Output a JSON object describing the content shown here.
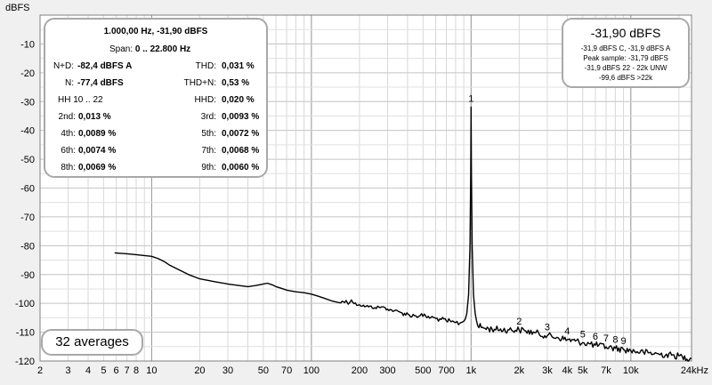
{
  "chart_data": {
    "type": "line",
    "ylabel": "dBFS",
    "x_unit_label": "24kHz",
    "x_scale": "log",
    "xlim": [
      2,
      24000
    ],
    "ylim": [
      -120,
      0
    ],
    "grid": true,
    "y_ticks": [
      -10,
      -20,
      -30,
      -40,
      -50,
      -60,
      -70,
      -80,
      -90,
      -100,
      -110,
      -120
    ],
    "x_ticks": [
      {
        "v": 2,
        "label": "2"
      },
      {
        "v": 3,
        "label": "3"
      },
      {
        "v": 4,
        "label": "4"
      },
      {
        "v": 5,
        "label": "5"
      },
      {
        "v": 6,
        "label": "6"
      },
      {
        "v": 7,
        "label": "7"
      },
      {
        "v": 8,
        "label": "8"
      },
      {
        "v": 10,
        "label": "10"
      },
      {
        "v": 20,
        "label": "20"
      },
      {
        "v": 30,
        "label": "30"
      },
      {
        "v": 50,
        "label": "50"
      },
      {
        "v": 70,
        "label": "70"
      },
      {
        "v": 100,
        "label": "100"
      },
      {
        "v": 200,
        "label": "200"
      },
      {
        "v": 300,
        "label": "300"
      },
      {
        "v": 500,
        "label": "500"
      },
      {
        "v": 700,
        "label": "700"
      },
      {
        "v": 1000,
        "label": "1k"
      },
      {
        "v": 2000,
        "label": "2k"
      },
      {
        "v": 3000,
        "label": "3k"
      },
      {
        "v": 4000,
        "label": "4k"
      },
      {
        "v": 5000,
        "label": "5k"
      },
      {
        "v": 7000,
        "label": "7k"
      },
      {
        "v": 10000,
        "label": "10k"
      }
    ],
    "series": [
      {
        "color": "#000000",
        "points": [
          [
            5.86,
            -82.5
          ],
          [
            7,
            -82.8
          ],
          [
            8,
            -83.1
          ],
          [
            9,
            -83.4
          ],
          [
            10,
            -83.7
          ],
          [
            11,
            -84.5
          ],
          [
            12,
            -85.5
          ],
          [
            13,
            -86.8
          ],
          [
            15,
            -88.5
          ],
          [
            17,
            -90
          ],
          [
            20,
            -91.5
          ],
          [
            25,
            -92.5
          ],
          [
            30,
            -93.3
          ],
          [
            35,
            -93.8
          ],
          [
            40,
            -94.2
          ],
          [
            45,
            -93.8
          ],
          [
            50,
            -93.3
          ],
          [
            53,
            -93.0
          ],
          [
            57,
            -93.6
          ],
          [
            60,
            -94.2
          ],
          [
            65,
            -94.8
          ],
          [
            70,
            -95.4
          ],
          [
            80,
            -96
          ],
          [
            90,
            -96.3
          ],
          [
            100,
            -96.8
          ],
          [
            110,
            -97.5
          ],
          [
            120,
            -98.2
          ],
          [
            135,
            -99.2
          ],
          [
            150,
            -99.8
          ],
          [
            165,
            -99.0
          ],
          [
            170,
            -100.3
          ],
          [
            178,
            -98.8
          ],
          [
            185,
            -100.1
          ],
          [
            200,
            -100.5
          ],
          [
            220,
            -101
          ],
          [
            250,
            -101.5
          ],
          [
            275,
            -101.2
          ],
          [
            300,
            -102
          ],
          [
            330,
            -102.6
          ],
          [
            370,
            -103.3
          ],
          [
            410,
            -104
          ],
          [
            450,
            -104.3
          ],
          [
            480,
            -104.2
          ],
          [
            520,
            -104.5
          ],
          [
            560,
            -104.9
          ],
          [
            600,
            -105.2
          ],
          [
            650,
            -105.6
          ],
          [
            700,
            -106.1
          ],
          [
            750,
            -106.4
          ],
          [
            800,
            -106.7
          ],
          [
            850,
            -106.9
          ],
          [
            900,
            -106.2
          ],
          [
            940,
            -103.5
          ],
          [
            965,
            -97
          ],
          [
            985,
            -80
          ],
          [
            995,
            -55
          ],
          [
            1000,
            -31.9
          ],
          [
            1005,
            -55
          ],
          [
            1015,
            -80
          ],
          [
            1035,
            -97
          ],
          [
            1060,
            -103.5
          ],
          [
            1100,
            -107.8
          ],
          [
            1200,
            -108.6
          ],
          [
            1400,
            -109
          ],
          [
            1700,
            -109.2
          ],
          [
            2000,
            -109.2
          ],
          [
            2200,
            -109.6
          ],
          [
            2500,
            -110.2
          ],
          [
            3000,
            -111.2
          ],
          [
            3500,
            -111.9
          ],
          [
            4000,
            -112.6
          ],
          [
            4500,
            -113.1
          ],
          [
            5000,
            -113.6
          ],
          [
            6000,
            -114.5
          ],
          [
            7000,
            -115.1
          ],
          [
            8000,
            -115.6
          ],
          [
            9000,
            -116
          ],
          [
            10000,
            -116.4
          ],
          [
            12000,
            -117
          ],
          [
            15000,
            -117.6
          ],
          [
            18000,
            -118
          ],
          [
            21000,
            -118.5
          ],
          [
            24000,
            -119.2
          ]
        ]
      }
    ],
    "markers": [
      {
        "label": "1",
        "x": 1000,
        "y": -31.9
      },
      {
        "label": "2",
        "x": 2000,
        "y": -109.2
      },
      {
        "label": "3",
        "x": 3000,
        "y": -111.2
      },
      {
        "label": "4",
        "x": 4000,
        "y": -112.6
      },
      {
        "label": "5",
        "x": 5000,
        "y": -113.6
      },
      {
        "label": "6",
        "x": 6000,
        "y": -114.5
      },
      {
        "label": "7",
        "x": 7000,
        "y": -115.1
      },
      {
        "label": "8",
        "x": 8000,
        "y": -115.6
      },
      {
        "label": "9",
        "x": 9000,
        "y": -116
      }
    ]
  },
  "info": {
    "header": "1.000,00 Hz, -31,90 dBFS",
    "span_label": "Span:",
    "span_value": "0 .. 22.800 Hz",
    "nd_label": "N+D:",
    "nd_value": "-82,4 dBFS A",
    "thd_label": "THD:",
    "thd_value": "0,031 %",
    "n_label": "N:",
    "n_value": "-77,4 dBFS",
    "thdn_label": "THD+N:",
    "thdn_value": "0,53 %",
    "hh_label": "HH 10 .. 22",
    "hhd_label": "HHD:",
    "hhd_value": "0,020 %",
    "h2_label": "2nd:",
    "h2_value": "0,013 %",
    "h3_label": "3rd:",
    "h3_value": "0,0093 %",
    "h4_label": "4th:",
    "h4_value": "0,0089 %",
    "h5_label": "5th:",
    "h5_value": "0,0072 %",
    "h6_label": "6th:",
    "h6_value": "0,0074 %",
    "h7_label": "7th:",
    "h7_value": "0,0068 %",
    "h8_label": "8th:",
    "h8_value": "0,0069 %",
    "h9_label": "9th:",
    "h9_value": "0,0060 %"
  },
  "level": {
    "main": "-31,90 dBFS",
    "line1": "-31,9 dBFS C, -31,9 dBFS A",
    "line2": "Peak sample: -31,79 dBFS",
    "line3": "-31,9 dBFS 22 - 22k UNW",
    "line4": "-99,6 dBFS >22k"
  },
  "averages": "32 averages"
}
